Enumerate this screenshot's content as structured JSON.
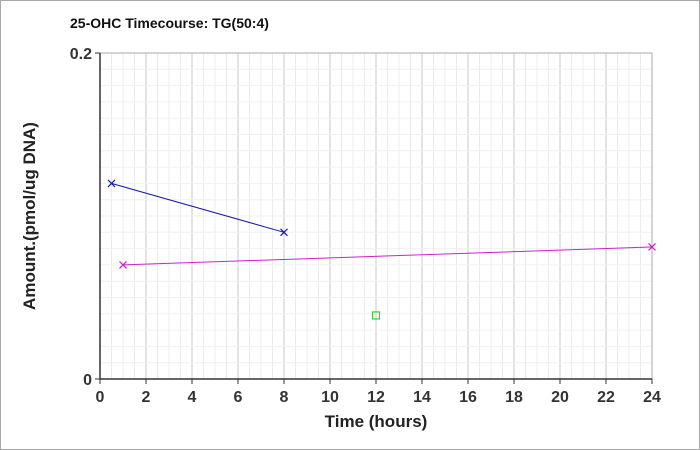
{
  "chart_data": {
    "type": "line",
    "title": "25-OHC Timecourse: TG(50:4)",
    "xlabel": "Time (hours)",
    "ylabel": "Amount.(pmol/ug DNA)",
    "xlim": [
      0,
      24
    ],
    "ylim": [
      0,
      0.2
    ],
    "x_ticks": [
      "0",
      "2",
      "4",
      "6",
      "8",
      "10",
      "12",
      "14",
      "16",
      "18",
      "20",
      "22",
      "24"
    ],
    "y_ticks": [
      "0",
      "0.2"
    ],
    "grid": true,
    "legend": "none",
    "series": [
      {
        "color": "#1a1aa6",
        "marker": "x",
        "points": [
          [
            0.5,
            0.12
          ],
          [
            8,
            0.09
          ]
        ]
      },
      {
        "color": "#cc22cc",
        "marker": "x",
        "points": [
          [
            1,
            0.07
          ],
          [
            24,
            0.081
          ]
        ]
      },
      {
        "color": "#33cc33",
        "marker": "square",
        "points": [
          [
            12,
            0.039
          ]
        ]
      }
    ]
  }
}
